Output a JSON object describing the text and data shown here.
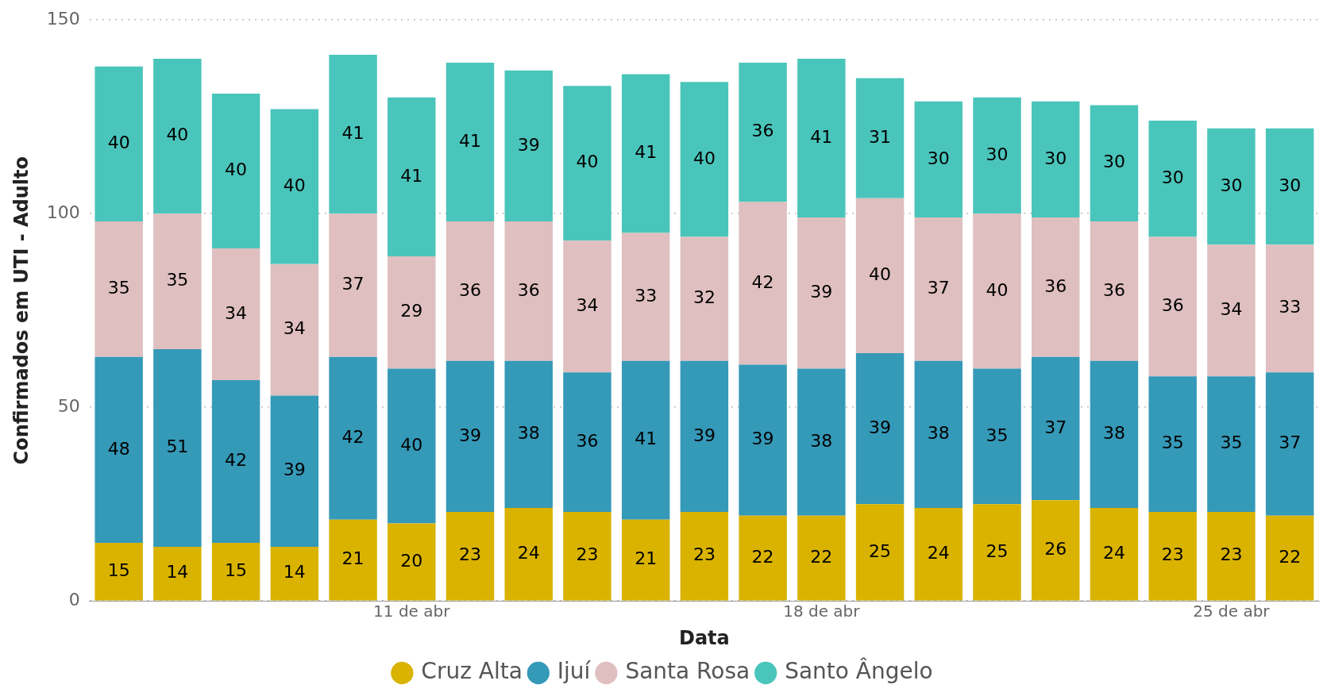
{
  "chart_data": {
    "type": "bar",
    "stacked": true,
    "xlabel": "Data",
    "ylabel": "Confirmados em UTI - Adulto",
    "categories": [
      null,
      null,
      null,
      null,
      null,
      "11 de abr",
      null,
      null,
      null,
      null,
      null,
      null,
      "18 de abr",
      null,
      null,
      null,
      null,
      null,
      null,
      "25 de abr",
      null
    ],
    "series": [
      {
        "name": "Cruz Alta",
        "color": "#d9b300",
        "values": [
          15,
          14,
          15,
          14,
          21,
          20,
          23,
          24,
          23,
          21,
          23,
          22,
          22,
          25,
          24,
          25,
          26,
          24,
          23,
          23,
          22
        ]
      },
      {
        "name": "Ijuí",
        "color": "#3599b8",
        "values": [
          48,
          51,
          42,
          39,
          42,
          40,
          39,
          38,
          36,
          41,
          39,
          39,
          38,
          39,
          38,
          35,
          37,
          38,
          35,
          35,
          37
        ]
      },
      {
        "name": "Santa Rosa",
        "color": "#dfbfbf",
        "values": [
          35,
          35,
          34,
          34,
          37,
          29,
          36,
          36,
          34,
          33,
          32,
          42,
          39,
          40,
          37,
          40,
          36,
          36,
          36,
          34,
          33
        ]
      },
      {
        "name": "Santo Ângelo",
        "color": "#4ac5bb",
        "values": [
          40,
          40,
          40,
          40,
          41,
          41,
          41,
          39,
          40,
          41,
          40,
          36,
          41,
          31,
          30,
          30,
          30,
          30,
          30,
          30,
          30
        ]
      }
    ],
    "ylim": [
      0,
      150
    ],
    "yticks": [
      0,
      50,
      100,
      150
    ],
    "grid": "y",
    "legend": "bottom",
    "data_labels": true
  }
}
